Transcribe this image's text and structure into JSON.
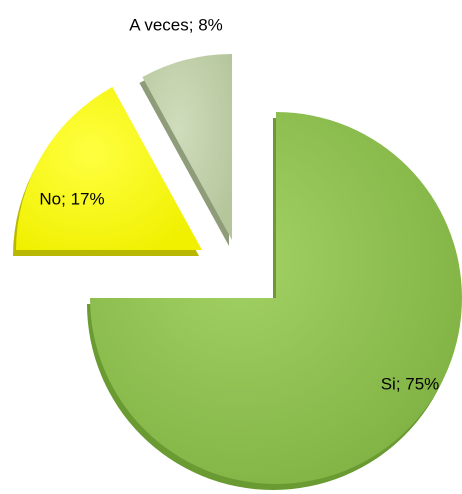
{
  "chart_data": {
    "type": "pie",
    "values": [
      75,
      17,
      8
    ],
    "value_labels": [
      "Si; 75%",
      "No; 17%",
      "A veces; 8%"
    ],
    "colors": [
      "#92c353",
      "#ffff00",
      "#c4d3ad"
    ]
  }
}
